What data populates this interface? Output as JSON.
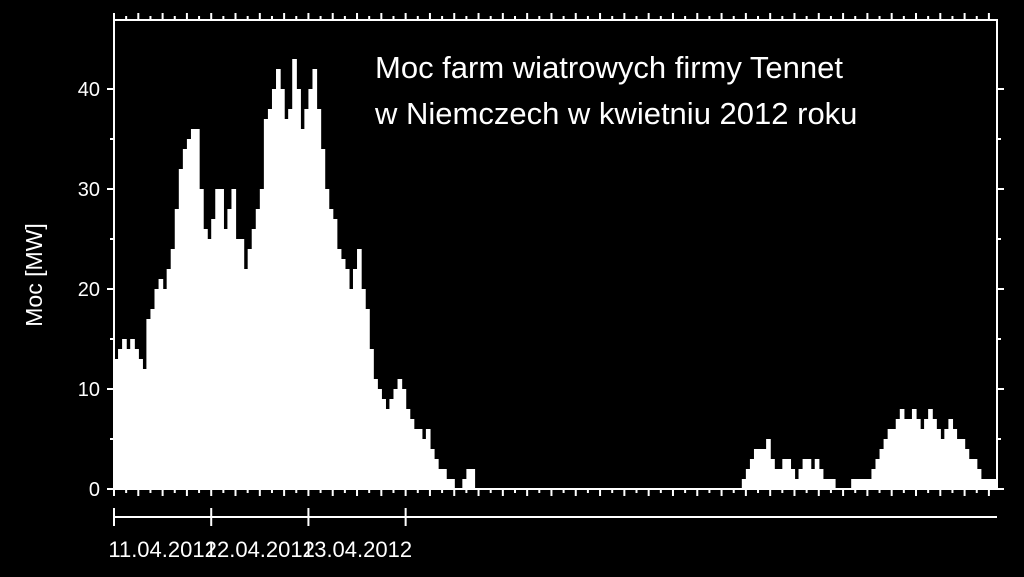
{
  "chart_data": {
    "type": "bar",
    "title_lines": [
      "Moc farm wiatrowych firmy Tennet",
      "w Niemczech w kwietniu 2012 roku"
    ],
    "xlabel": "",
    "ylabel": "Moc [MW]",
    "ylim": [
      0,
      44
    ],
    "yticks": [
      "0",
      "10",
      "20",
      "30",
      "40"
    ],
    "day_labels": [
      "11.04.2012",
      "12.04.2012",
      "13.04.2012"
    ],
    "x_unit": "hour from 11.04.2012 00:00",
    "values": [
      13,
      14,
      15,
      14,
      15,
      14,
      13,
      12,
      17,
      18,
      20,
      21,
      20,
      22,
      24,
      28,
      32,
      34,
      35,
      36,
      36,
      30,
      26,
      25,
      27,
      30,
      30,
      26,
      28,
      30,
      25,
      25,
      22,
      24,
      26,
      28,
      30,
      37,
      38,
      40,
      42,
      40,
      37,
      38,
      43,
      40,
      36,
      38,
      40,
      42,
      38,
      34,
      30,
      28,
      27,
      24,
      23,
      22,
      20,
      22,
      24,
      20,
      18,
      14,
      11,
      10,
      9,
      8,
      9,
      10,
      11,
      10,
      8,
      7,
      6,
      6,
      5,
      6,
      4,
      3,
      2,
      2,
      1,
      1,
      0,
      0,
      1,
      2,
      2,
      0,
      0,
      0,
      0,
      0,
      0,
      0,
      0,
      0,
      0,
      0,
      0,
      0,
      0,
      0,
      0,
      0,
      0,
      0,
      0,
      0,
      0,
      0,
      0,
      0,
      0,
      0,
      0,
      0,
      0,
      0,
      0,
      0,
      0,
      0,
      0,
      0,
      0,
      0,
      0,
      0,
      0,
      0,
      0,
      0,
      0,
      0,
      0,
      0,
      0,
      0,
      0,
      0,
      0,
      0,
      0,
      0,
      0,
      0,
      0,
      0,
      0,
      0,
      0,
      0,
      0,
      1,
      2,
      3,
      4,
      4,
      4,
      5,
      3,
      2,
      2,
      3,
      3,
      2,
      1,
      2,
      3,
      3,
      2,
      3,
      2,
      1,
      1,
      1,
      0,
      0,
      0,
      0,
      1,
      1,
      1,
      1,
      1,
      2,
      3,
      4,
      5,
      6,
      6,
      7,
      8,
      7,
      7,
      8,
      7,
      6,
      7,
      8,
      7,
      6,
      5,
      6,
      7,
      6,
      5,
      5,
      4,
      3,
      3,
      2,
      1,
      1,
      1,
      1
    ]
  }
}
